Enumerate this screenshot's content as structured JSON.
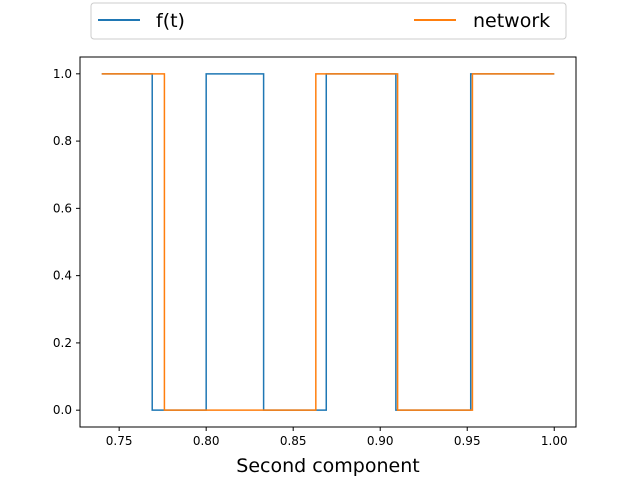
{
  "chart_data": {
    "type": "line",
    "title": "",
    "xlabel": "Second component",
    "ylabel": "",
    "xlim": [
      0.7275,
      1.0125
    ],
    "ylim": [
      -0.05,
      1.05
    ],
    "xticks": [
      0.75,
      0.8,
      0.85,
      0.9,
      0.95,
      1.0
    ],
    "xtick_labels": [
      "0.75",
      "0.80",
      "0.85",
      "0.90",
      "0.95",
      "1.00"
    ],
    "yticks": [
      0.0,
      0.2,
      0.4,
      0.6,
      0.8,
      1.0
    ],
    "ytick_labels": [
      "0.0",
      "0.2",
      "0.4",
      "0.6",
      "0.8",
      "1.0"
    ],
    "grid": false,
    "legend_position": "top, outside plot, two columns",
    "series": [
      {
        "name": "f(t)",
        "color": "#1f77b4",
        "x": [
          0.74,
          0.769,
          0.769,
          0.8,
          0.8,
          0.833,
          0.833,
          0.869,
          0.869,
          0.909,
          0.909,
          0.952,
          0.952,
          1.0
        ],
        "y": [
          1,
          1,
          0,
          0,
          1,
          1,
          0,
          0,
          1,
          1,
          0,
          0,
          1,
          1
        ]
      },
      {
        "name": "network",
        "color": "#ff7f0e",
        "x": [
          0.74,
          0.776,
          0.776,
          0.863,
          0.863,
          0.91,
          0.91,
          0.953,
          0.953,
          1.0
        ],
        "y": [
          1,
          1,
          0,
          0,
          1,
          1,
          0,
          0,
          1,
          1
        ]
      }
    ]
  }
}
